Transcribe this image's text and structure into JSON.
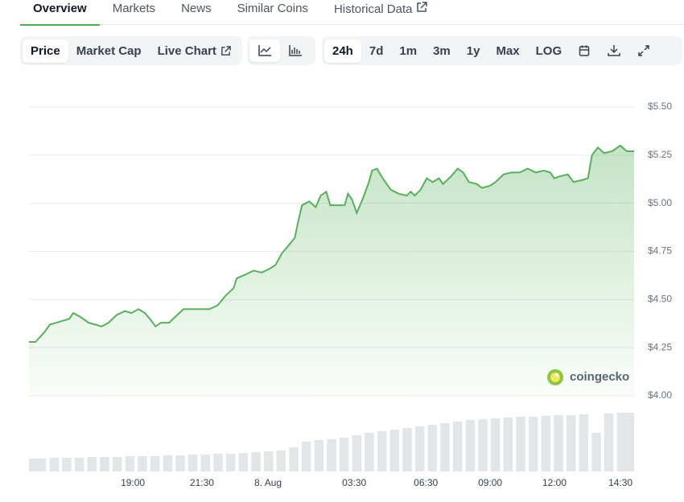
{
  "tabs": [
    "Overview",
    "Markets",
    "News",
    "Similar Coins",
    "Historical Data"
  ],
  "toolbar": {
    "views": [
      "Price",
      "Market Cap",
      "Live Chart"
    ],
    "ranges": [
      "24h",
      "7d",
      "1m",
      "3m",
      "1y",
      "Max",
      "LOG"
    ]
  },
  "watermark": "coingecko",
  "chart_data": [
    {
      "type": "line",
      "color": "#57b05a",
      "fill": true,
      "grid": true,
      "x": [
        0,
        0.26,
        0.61,
        0.83,
        1.09,
        1.34,
        1.6,
        1.76,
        2.04,
        2.36,
        2.62,
        2.88,
        3.16,
        3.48,
        3.8,
        4.06,
        4.35,
        4.6,
        4.79,
        5.02,
        5.24,
        5.56,
        5.88,
        6.13,
        6.52,
        6.77,
        7.16,
        7.48,
        7.8,
        8.12,
        8.24,
        8.59,
        8.91,
        9.23,
        9.55,
        9.78,
        10.03,
        10.29,
        10.54,
        10.67,
        10.83,
        11.12,
        11.37,
        11.57,
        11.79,
        11.95,
        12.27,
        12.52,
        12.65,
        12.81,
        13,
        13.23,
        13.48,
        13.61,
        13.8,
        14.03,
        14.35,
        14.66,
        14.98,
        15.14,
        15.3,
        15.53,
        15.78,
        16.01,
        16.26,
        16.42,
        16.74,
        17,
        17.22,
        17.44,
        17.76,
        17.96,
        18.27,
        18.5,
        18.82,
        19.14,
        19.46,
        19.78,
        20.1,
        20.42,
        20.67,
        20.83,
        21.05,
        21.37,
        21.6,
        21.92,
        22.17,
        22.33,
        22.56,
        22.81,
        23.13,
        23.45,
        23.71,
        24
      ],
      "values": [
        4.28,
        4.28,
        4.33,
        4.37,
        4.38,
        4.39,
        4.4,
        4.43,
        4.41,
        4.38,
        4.37,
        4.36,
        4.38,
        4.42,
        4.44,
        4.43,
        4.45,
        4.43,
        4.4,
        4.36,
        4.38,
        4.38,
        4.42,
        4.45,
        4.45,
        4.45,
        4.45,
        4.47,
        4.52,
        4.56,
        4.61,
        4.63,
        4.65,
        4.64,
        4.66,
        4.68,
        4.74,
        4.78,
        4.82,
        4.9,
        4.99,
        5.01,
        4.98,
        5.04,
        5.06,
        4.99,
        4.99,
        4.99,
        5.05,
        5.02,
        4.95,
        5.02,
        5.11,
        5.17,
        5.18,
        5.13,
        5.07,
        5.05,
        5.04,
        5.06,
        5.04,
        5.07,
        5.13,
        5.11,
        5.13,
        5.1,
        5.14,
        5.18,
        5.16,
        5.11,
        5.1,
        5.08,
        5.09,
        5.11,
        5.15,
        5.16,
        5.16,
        5.18,
        5.16,
        5.17,
        5.16,
        5.13,
        5.14,
        5.15,
        5.11,
        5.12,
        5.13,
        5.25,
        5.29,
        5.26,
        5.27,
        5.3,
        5.27,
        5.27
      ],
      "xlim": [
        0,
        24
      ],
      "xticks": [
        {
          "value": 4.12,
          "label": "19:00"
        },
        {
          "value": 6.86,
          "label": "21:30"
        },
        {
          "value": 9.48,
          "label": "8. Aug"
        },
        {
          "value": 12.9,
          "label": "03:30"
        },
        {
          "value": 15.74,
          "label": "06:30"
        },
        {
          "value": 18.29,
          "label": "09:00"
        },
        {
          "value": 20.84,
          "label": "12:00"
        },
        {
          "value": 23.46,
          "label": "14:30"
        }
      ],
      "ylim": [
        4.0,
        5.5
      ],
      "yticks": [
        {
          "value": 4.0,
          "label": "$4.00"
        },
        {
          "value": 4.25,
          "label": "$4.25"
        },
        {
          "value": 4.5,
          "label": "$4.50"
        },
        {
          "value": 4.75,
          "label": "$4.75"
        },
        {
          "value": 5.0,
          "label": "$5.00"
        },
        {
          "value": 5.25,
          "label": "$5.25"
        },
        {
          "value": 5.5,
          "label": "$5.50"
        }
      ]
    },
    {
      "type": "bar",
      "color": "#e3e5e8",
      "x": [
        0,
        0.5,
        1,
        1.5,
        2,
        2.5,
        3,
        3.5,
        4,
        4.5,
        5,
        5.5,
        6,
        6.5,
        7,
        7.5,
        8,
        8.5,
        9,
        9.5,
        10,
        10.5,
        11,
        11.5,
        12,
        12.5,
        13,
        13.5,
        14,
        14.5,
        15,
        15.5,
        16,
        16.5,
        17,
        17.5,
        18,
        18.5,
        19,
        19.5,
        20,
        20.5,
        21,
        21.5,
        22,
        22.5,
        23,
        23.5,
        24
      ],
      "values": [
        16,
        16,
        17,
        17,
        17,
        18,
        18,
        18,
        19,
        19,
        19,
        20,
        20,
        21,
        21,
        22,
        22,
        23,
        24,
        25,
        26,
        30,
        37,
        39,
        40,
        42,
        45,
        48,
        50,
        52,
        54,
        56,
        58,
        60,
        62,
        64,
        65,
        66,
        67,
        68,
        68,
        69,
        70,
        70,
        71,
        48,
        72,
        73,
        73
      ],
      "xlim": [
        0,
        24
      ],
      "ylim": [
        0,
        80
      ]
    }
  ]
}
